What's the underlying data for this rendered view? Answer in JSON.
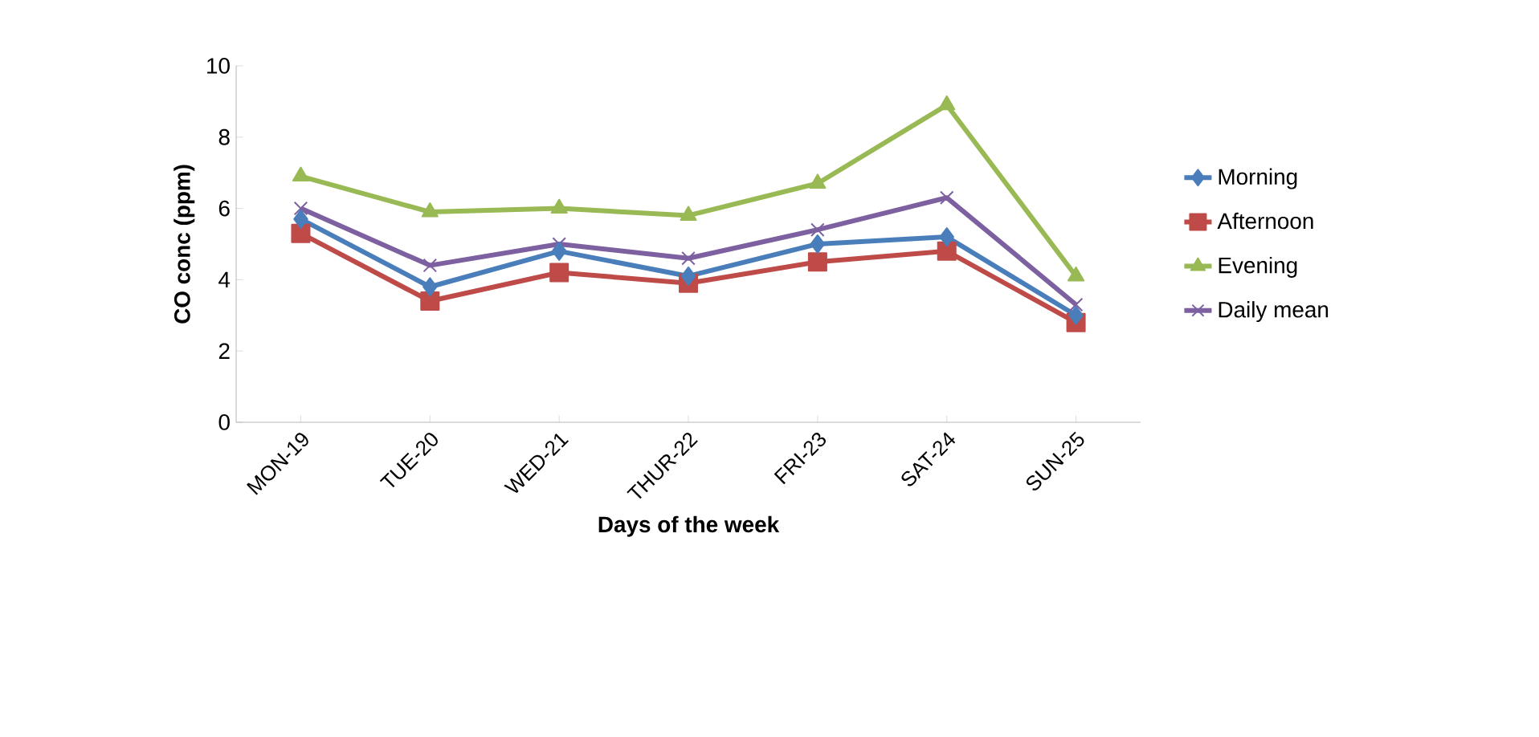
{
  "chart_data": {
    "type": "line",
    "xlabel": "Days of the week",
    "ylabel": "CO conc (ppm)",
    "categories": [
      "MON-19",
      "TUE-20",
      "WED-21",
      "THUR-22",
      "FRI-23",
      "SAT-24",
      "SUN-25"
    ],
    "series": [
      {
        "name": "Morning",
        "color": "#4a7ebb",
        "marker": "diamond",
        "values": [
          5.7,
          3.8,
          4.8,
          4.1,
          5.0,
          5.2,
          3.0
        ]
      },
      {
        "name": "Afternoon",
        "color": "#be4b48",
        "marker": "square",
        "values": [
          5.3,
          3.4,
          4.2,
          3.9,
          4.5,
          4.8,
          2.8
        ]
      },
      {
        "name": "Evening",
        "color": "#98b954",
        "marker": "triangle",
        "values": [
          6.9,
          5.9,
          6.0,
          5.8,
          6.7,
          8.9,
          4.1
        ]
      },
      {
        "name": "Daily mean",
        "color": "#7d60a0",
        "marker": "cross",
        "values": [
          6.0,
          4.4,
          5.0,
          4.6,
          5.4,
          6.3,
          3.3
        ]
      }
    ],
    "ylim": [
      0,
      10
    ],
    "yticks": [
      0,
      2,
      4,
      6,
      8,
      10
    ],
    "grid": false,
    "legend": "right",
    "line_style": "solid"
  }
}
